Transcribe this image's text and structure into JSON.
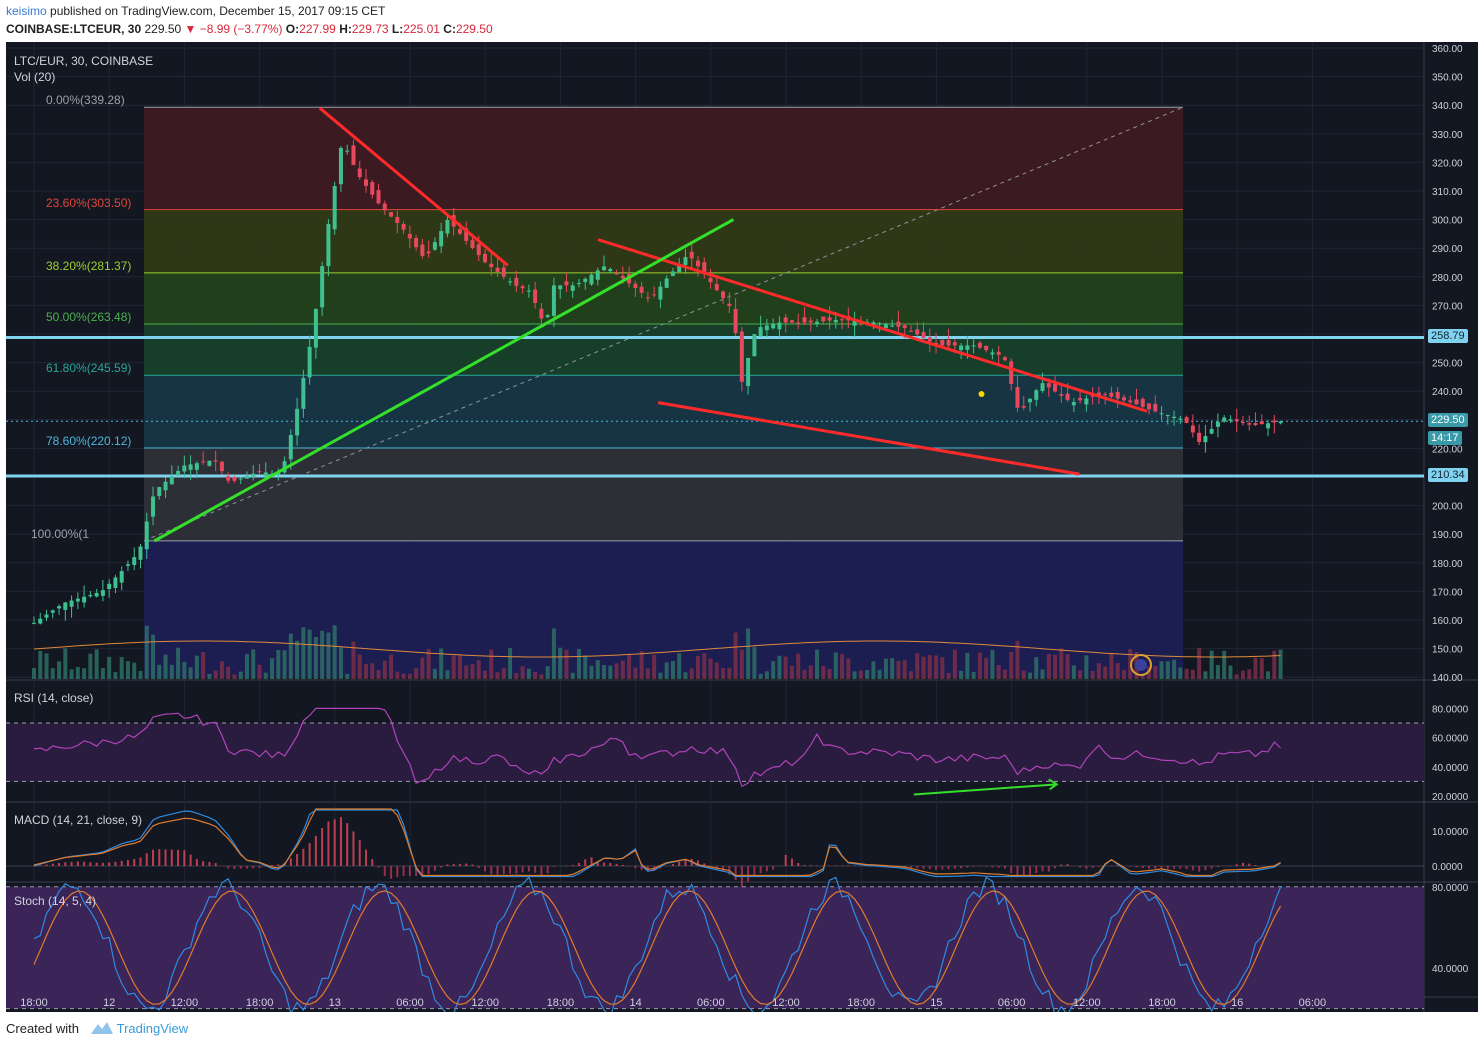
{
  "header": {
    "user": "keisimo",
    "published_text": "published on TradingView.com, December 15, 2017 09:15 CET",
    "symbol": "COINBASE:LTCEUR, 30",
    "last": "229.50",
    "change": "▼ −8.99 (−3.77%)",
    "o_label": "O:",
    "o_value": "227.99",
    "h_label": "H:",
    "h_value": "229.73",
    "l_label": "L:",
    "l_value": "225.01",
    "c_label": "C:",
    "c_value": "229.50"
  },
  "panes": {
    "main_title": "LTC/EUR, 30, COINBASE",
    "vol_title": "Vol (20)",
    "rsi_title": "RSI (14, close)",
    "macd_title": "MACD (14, 21, close, 9)",
    "stoch_title": "Stoch (14, 5, 4)"
  },
  "fib_levels": [
    {
      "label": "0.00%(339.28)",
      "price": 339.28,
      "color": "#9aa0aa"
    },
    {
      "label": "23.60%(303.50)",
      "price": 303.5,
      "color": "#e0463a"
    },
    {
      "label": "38.20%(281.37)",
      "price": 281.37,
      "color": "#9bd02d"
    },
    {
      "label": "50.00%(263.48)",
      "price": 263.48,
      "color": "#4caf50"
    },
    {
      "label": "61.80%(245.59)",
      "price": 245.59,
      "color": "#26a69a"
    },
    {
      "label": "78.60%(220.12)",
      "price": 220.12,
      "color": "#4fb6d9"
    },
    {
      "label": "100.00%(1",
      "price": 187.66,
      "color": "#9aa0aa"
    }
  ],
  "price_axis": {
    "ticks": [
      "360.00",
      "350.00",
      "340.00",
      "330.00",
      "320.00",
      "310.00",
      "300.00",
      "290.00",
      "280.00",
      "270.00",
      "260.00",
      "250.00",
      "240.00",
      "230.00",
      "220.00",
      "210.00",
      "200.00",
      "190.00",
      "180.00",
      "170.00",
      "160.00",
      "150.00",
      "140.00"
    ],
    "tags": {
      "level_high": "258.79",
      "last": "229.50",
      "countdown": "14:17",
      "level_low": "210.34"
    }
  },
  "rsi_axis": [
    "80.0000",
    "60.0000",
    "40.0000",
    "20.0000"
  ],
  "macd_axis": [
    "10.0000",
    "0.0000"
  ],
  "stoch_axis": [
    "80.0000",
    "40.0000"
  ],
  "time_axis": [
    "18:00",
    "12",
    "12:00",
    "18:00",
    "13",
    "06:00",
    "12:00",
    "18:00",
    "14",
    "06:00",
    "12:00",
    "18:00",
    "15",
    "06:00",
    "12:00",
    "18:00",
    "16",
    "06:00"
  ],
  "footer": {
    "created": "Created with",
    "brand": "TradingView"
  },
  "colors": {
    "up": "#3ec08f",
    "down": "#e8485d",
    "trend_red": "#ff2b2b",
    "trend_green": "#35e02b",
    "level": "#7fd3ef"
  }
}
